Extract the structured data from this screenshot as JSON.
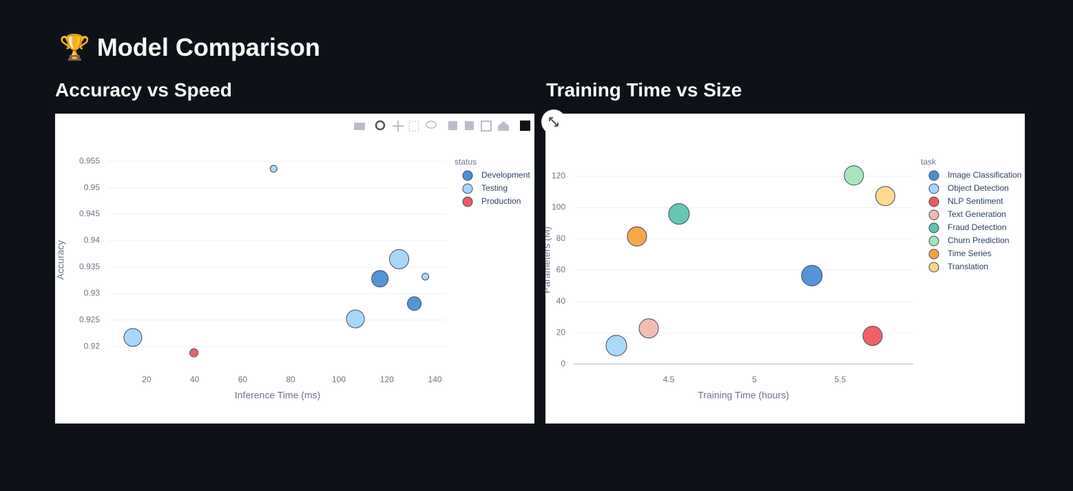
{
  "header": {
    "title": "🏆 Model Comparison"
  },
  "chart_data": [
    {
      "type": "scatter",
      "title": "Accuracy vs Speed",
      "x_label": "Inference Time (ms)",
      "y_label": "Accuracy",
      "legend_title": "status",
      "grid": "y",
      "xlim": [
        4,
        145
      ],
      "ylim": [
        0.9152,
        0.9575
      ],
      "xticks": [
        20,
        40,
        60,
        80,
        100,
        120,
        140
      ],
      "yticks": [
        0.92,
        0.925,
        0.93,
        0.935,
        0.94,
        0.945,
        0.95,
        0.955
      ],
      "series": [
        {
          "name": "Development",
          "color": "#4a8fd6",
          "x": [
            117.1,
            131.4
          ],
          "values": [
            0.9328,
            0.9281
          ],
          "sizes": [
            24,
            20
          ]
        },
        {
          "name": "Testing",
          "color": "#a5d6fb",
          "x": [
            72.9,
            125.1,
            136.0,
            106.9,
            14.3
          ],
          "values": [
            0.9536,
            0.9365,
            0.9332,
            0.9252,
            0.9217
          ],
          "sizes": [
            10,
            28,
            10,
            26,
            26
          ]
        },
        {
          "name": "Production",
          "color": "#ec5a62",
          "x": [
            39.7
          ],
          "values": [
            0.9188
          ],
          "sizes": [
            12
          ]
        }
      ]
    },
    {
      "type": "scatter",
      "title": "Training Time vs Size",
      "x_label": "Training Time (hours)",
      "y_label": "Parameters (M)",
      "legend_title": "task",
      "grid": "y",
      "xlim": [
        3.946,
        5.926
      ],
      "ylim": [
        -5,
        138
      ],
      "xticks": [
        4.5,
        5,
        5.5
      ],
      "yticks": [
        0,
        20,
        40,
        60,
        80,
        100,
        120
      ],
      "series": [
        {
          "name": "Image Classification",
          "color": "#4a8fd6",
          "x": [
            5.335
          ],
          "values": [
            56.5
          ],
          "sizes": [
            30
          ]
        },
        {
          "name": "Object Detection",
          "color": "#a5d6fb",
          "x": [
            4.195
          ],
          "values": [
            11.8
          ],
          "sizes": [
            30
          ]
        },
        {
          "name": "NLP Sentiment",
          "color": "#ef5a5f",
          "x": [
            5.689
          ],
          "values": [
            18.0
          ],
          "sizes": [
            28
          ]
        },
        {
          "name": "Text Generation",
          "color": "#f3b9ae",
          "x": [
            4.384
          ],
          "values": [
            22.8
          ],
          "sizes": [
            28
          ]
        },
        {
          "name": "Fraud Detection",
          "color": "#5ec4b0",
          "x": [
            4.56
          ],
          "values": [
            95.9
          ],
          "sizes": [
            30
          ]
        },
        {
          "name": "Churn Prediction",
          "color": "#9fe6b9",
          "x": [
            5.58
          ],
          "values": [
            120.5
          ],
          "sizes": [
            28
          ]
        },
        {
          "name": "Time Series",
          "color": "#f5a240",
          "x": [
            4.315
          ],
          "values": [
            81.5
          ],
          "sizes": [
            28
          ]
        },
        {
          "name": "Translation",
          "color": "#ffd687",
          "x": [
            5.763
          ],
          "values": [
            107.3
          ],
          "sizes": [
            28
          ]
        }
      ]
    }
  ]
}
